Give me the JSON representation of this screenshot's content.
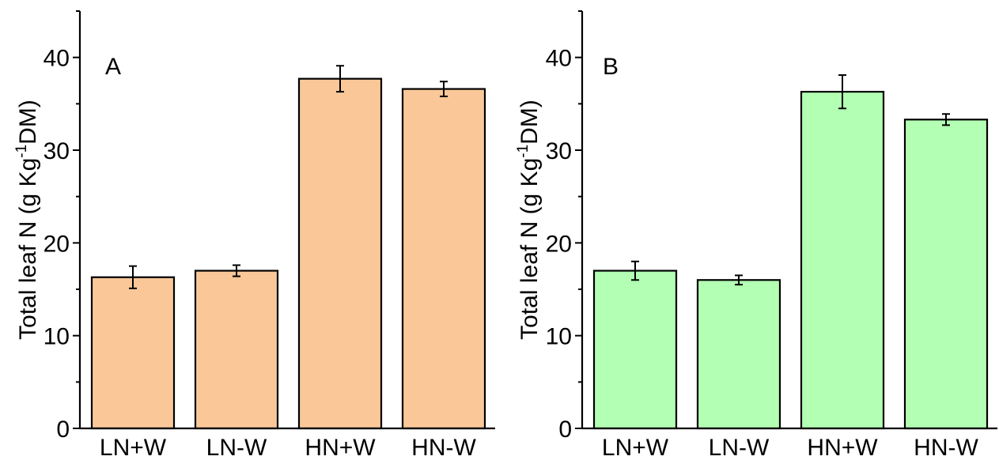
{
  "chart_data": [
    {
      "type": "bar",
      "panel_label": "A",
      "categories": [
        "LN+W",
        "LN-W",
        "HN+W",
        "HN-W"
      ],
      "values": [
        16.3,
        17.0,
        37.7,
        36.6
      ],
      "errors": [
        1.2,
        0.6,
        1.4,
        0.8
      ],
      "ylabel": {
        "prefix": "Total leaf N (g Kg",
        "sup": "-1",
        "suffix": "DM)"
      },
      "ylim": [
        0,
        45
      ],
      "yticks": [
        0,
        10,
        20,
        30,
        40
      ],
      "bar_color": "#FAC898",
      "grid": false
    },
    {
      "type": "bar",
      "panel_label": "B",
      "categories": [
        "LN+W",
        "LN-W",
        "HN+W",
        "HN-W"
      ],
      "values": [
        17.0,
        16.0,
        36.3,
        33.3
      ],
      "errors": [
        1.0,
        0.5,
        1.8,
        0.6
      ],
      "ylabel": {
        "prefix": "Total leaf N (g Kg",
        "sup": "-1",
        "suffix": "DM)"
      },
      "ylim": [
        0,
        45
      ],
      "yticks": [
        0,
        10,
        20,
        30,
        40
      ],
      "bar_color": "#B3FFB3",
      "grid": false
    }
  ]
}
